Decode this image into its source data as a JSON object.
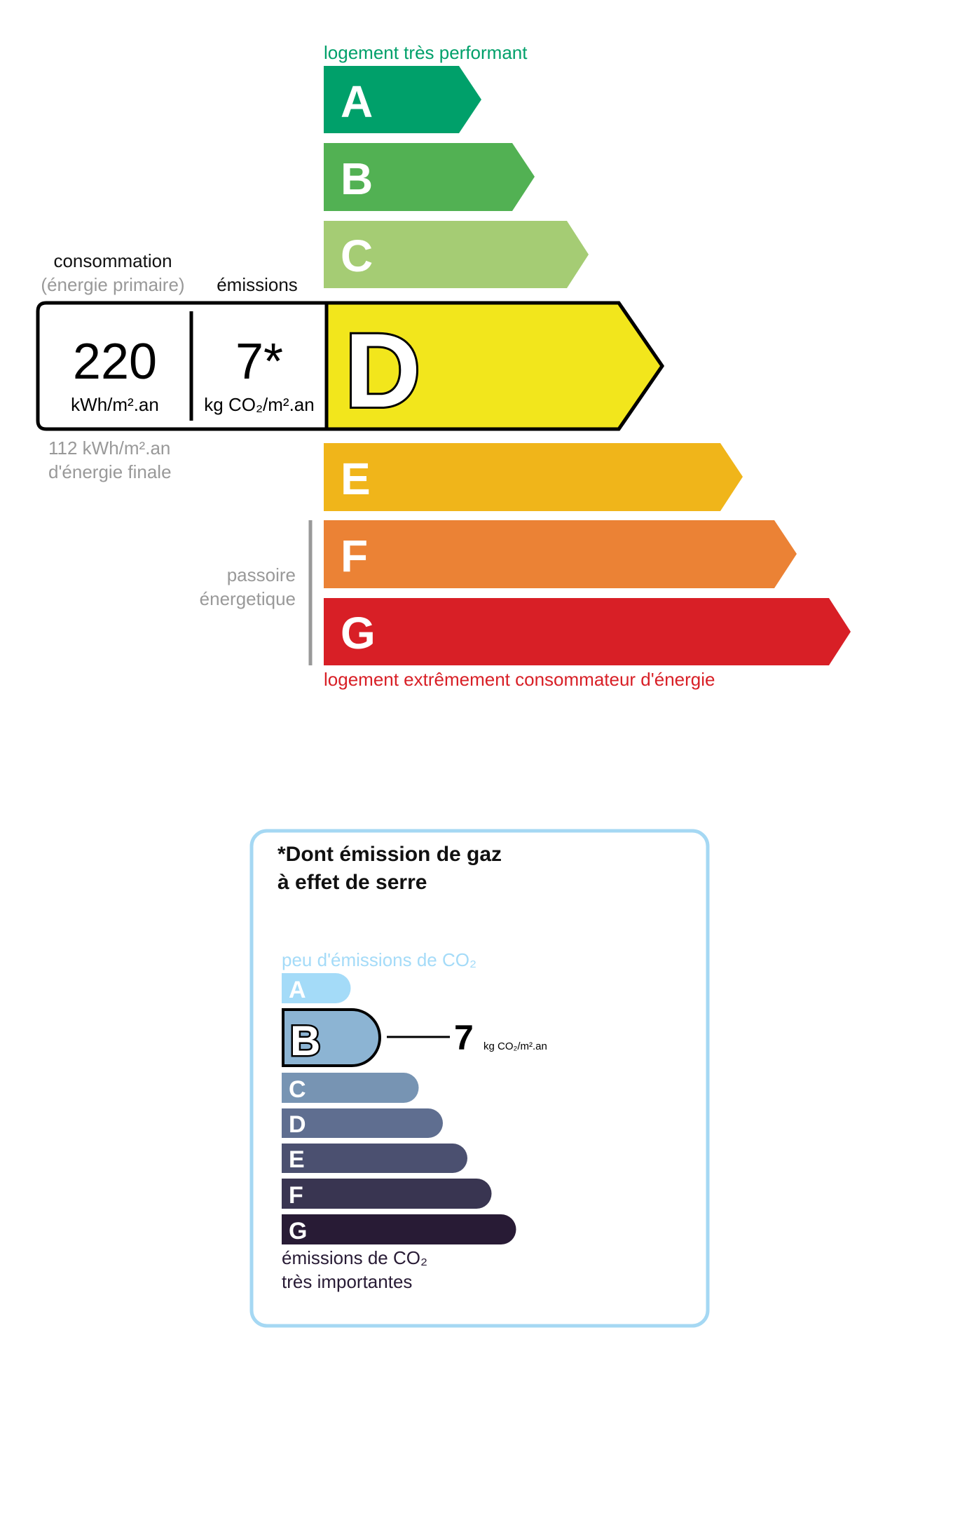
{
  "energy": {
    "top_label": "logement très performant",
    "bottom_label": "logement extrêmement consommateur d'énergie",
    "passoire": [
      "passoire",
      "énergetique"
    ],
    "classes": [
      {
        "letter": "A",
        "color": "#00a06a"
      },
      {
        "letter": "B",
        "color": "#52b153"
      },
      {
        "letter": "C",
        "color": "#a5cc74"
      },
      {
        "letter": "D",
        "color": "#f2e61c"
      },
      {
        "letter": "E",
        "color": "#f0b51a"
      },
      {
        "letter": "F",
        "color": "#eb8235"
      },
      {
        "letter": "G",
        "color": "#d81f26"
      }
    ],
    "current_class": "D",
    "consumption_label": "consommation",
    "consumption_sub": "(énergie primaire)",
    "emissions_label": "émissions",
    "consumption_value": "220",
    "consumption_unit": "kWh/m².an",
    "emissions_value": "7*",
    "emissions_unit": "kg CO₂/m².an",
    "final_energy": [
      "112 kWh/m².an",
      "d'énergie finale"
    ],
    "top_color": "#00a06a",
    "bottom_color": "#d81f26"
  },
  "ges": {
    "title": [
      "*Dont émission de gaz",
      "à effet de serre"
    ],
    "top_label": "peu d'émissions de CO₂",
    "bottom_label": [
      "émissions de CO₂",
      "très importantes"
    ],
    "classes": [
      {
        "letter": "A",
        "color": "#a4dbf8"
      },
      {
        "letter": "B",
        "color": "#8cb4d3"
      },
      {
        "letter": "C",
        "color": "#7794b3"
      },
      {
        "letter": "D",
        "color": "#5f6e90"
      },
      {
        "letter": "E",
        "color": "#4b5070"
      },
      {
        "letter": "F",
        "color": "#393551"
      },
      {
        "letter": "G",
        "color": "#281b35"
      }
    ],
    "current_class": "B",
    "value": "7",
    "unit": "kg CO₂/m².an",
    "border_color": "#a5d8f3"
  }
}
